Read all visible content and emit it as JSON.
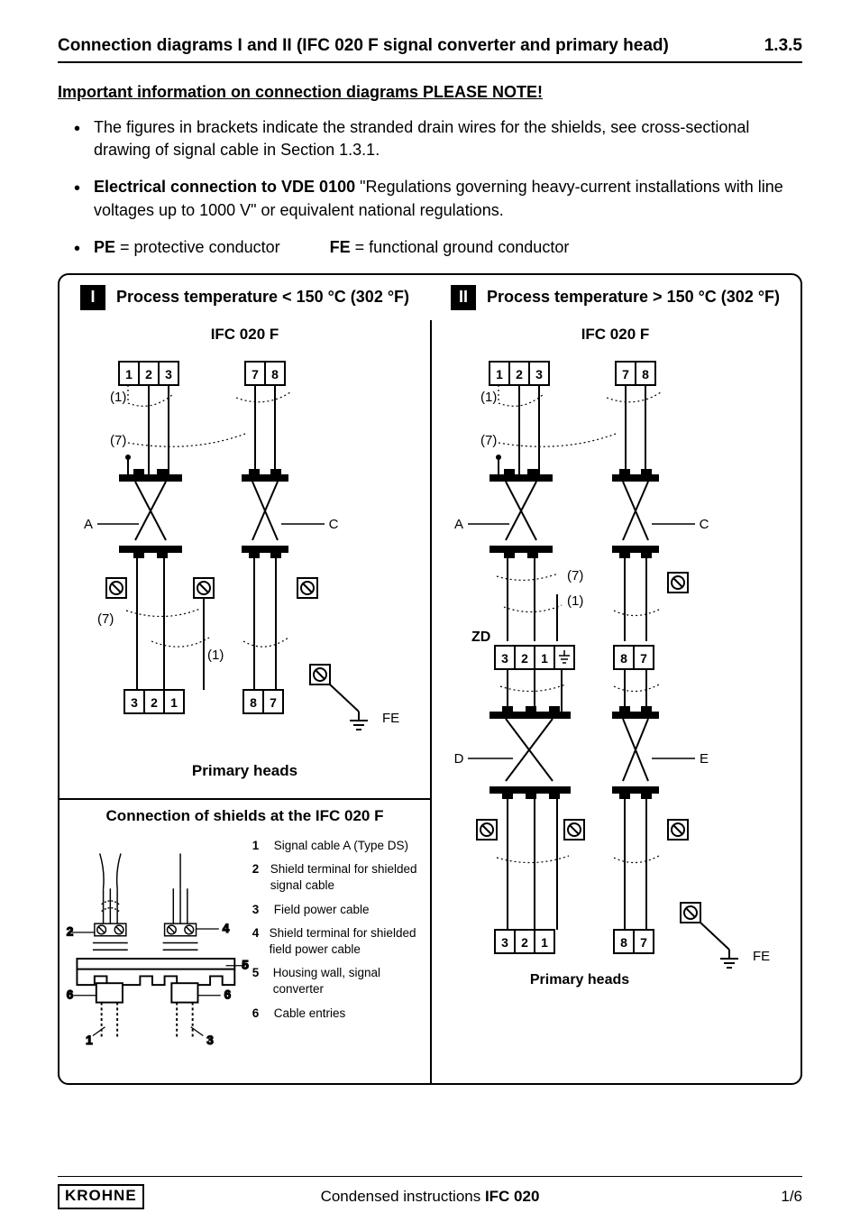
{
  "header": {
    "title": "Connection diagrams I and II (IFC 020 F signal converter and primary head)",
    "section_number": "1.3.5"
  },
  "subheading": "Important information on connection diagrams     PLEASE NOTE!",
  "bullets": [
    {
      "html": "The figures in brackets indicate the stranded drain wires for the shields, see cross-sectional drawing of signal cable in Section 1.3.1."
    },
    {
      "html": "<b>Electrical connection to VDE 0100</b> \"Regulations governing heavy-current installations with line voltages up to 1000 V\" or equivalent national regulations."
    },
    {
      "html": "<b>PE</b> = protective conductor&nbsp;&nbsp;&nbsp;&nbsp;&nbsp;&nbsp;&nbsp;&nbsp;&nbsp;&nbsp;&nbsp;<b>FE</b> = functional ground conductor"
    }
  ],
  "diagram": {
    "headers": {
      "left": {
        "roman": "I",
        "text": "Process temperature < 150 °C (302 °F)"
      },
      "right": {
        "roman": "II",
        "text": "Process temperature > 150 °C (302 °F)"
      }
    },
    "left_top": {
      "title": "IFC 020 F",
      "caption": "Primary heads",
      "block_top_left": [
        "1",
        "2",
        "3"
      ],
      "block_top_right": [
        "7",
        "8"
      ],
      "block_bot_left": [
        "3",
        "2",
        "1"
      ],
      "block_bot_right": [
        "8",
        "7"
      ],
      "drain_labels": [
        "(1)",
        "(7)",
        "(7)",
        "(1)"
      ],
      "ac_labels": [
        "A",
        "C"
      ],
      "fe_label": "FE"
    },
    "shield_panel": {
      "caption": "Connection of shields at the IFC 020 F",
      "labels": [
        "1",
        "2",
        "3",
        "4",
        "5",
        "6"
      ],
      "legend": [
        {
          "n": "1",
          "text": "Signal cable A (Type DS)"
        },
        {
          "n": "2",
          "text": "Shield terminal for shielded signal cable"
        },
        {
          "n": "3",
          "text": "Field power cable"
        },
        {
          "n": "4",
          "text": "Shield terminal for shielded field power cable"
        },
        {
          "n": "5",
          "text": "Housing wall, signal converter"
        },
        {
          "n": "6",
          "text": "Cable entries"
        }
      ]
    },
    "right": {
      "title": "IFC 020 F",
      "caption": "Primary heads",
      "zd_label": "ZD",
      "block_top_left": [
        "1",
        "2",
        "3"
      ],
      "block_top_right": [
        "7",
        "8"
      ],
      "block_mid_left": [
        "3",
        "2",
        "1"
      ],
      "block_mid_right": [
        "8",
        "7"
      ],
      "block_bot_left": [
        "3",
        "2",
        "1"
      ],
      "block_bot_right": [
        "8",
        "7"
      ],
      "drain_labels": [
        "(1)",
        "(7)",
        "(7)",
        "(1)"
      ],
      "ac_labels": [
        "A",
        "C"
      ],
      "de_labels": [
        "D",
        "E"
      ],
      "fe_label": "FE"
    }
  },
  "footer": {
    "logo": "KROHNE",
    "center_pre": "Condensed instructions ",
    "center_bold": "IFC 020",
    "page_ref": "1/6"
  },
  "style": {
    "colors": {
      "text": "#000000",
      "background": "#ffffff",
      "border": "#000000",
      "roman_bg": "#000000",
      "roman_fg": "#ffffff"
    },
    "fontsizes": {
      "title": 19,
      "subhead": 18,
      "body": 18,
      "panel_title": 17,
      "legend": 13.5,
      "footer": 17
    }
  }
}
